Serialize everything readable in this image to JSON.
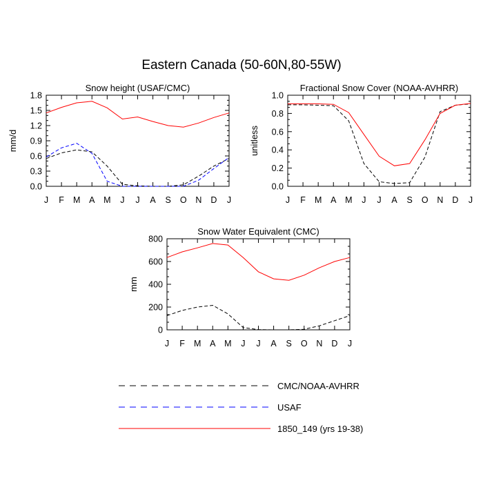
{
  "figure_title": "Eastern Canada (50-60N,80-55W)",
  "legend": [
    {
      "label": "CMC/NOAA-AVHRR",
      "color": "#000000",
      "style": "dashed"
    },
    {
      "label": "USAF",
      "color": "#0000ff",
      "style": "dashed"
    },
    {
      "label": "1850_149 (yrs 19-38)",
      "color": "#ff0000",
      "style": "solid"
    }
  ],
  "chart_data": [
    {
      "type": "line",
      "title": "Snow height (USAF/CMC)",
      "ylabel": "mm/d",
      "xlabel": "",
      "categories": [
        "J",
        "F",
        "M",
        "A",
        "M",
        "J",
        "J",
        "A",
        "S",
        "O",
        "N",
        "D",
        "J"
      ],
      "ylim": [
        0,
        1.8
      ],
      "yticks": [
        "0.0",
        "0.3",
        "0.6",
        "0.9",
        "1.2",
        "1.5",
        "1.8"
      ],
      "ytick_values": [
        0,
        0.3,
        0.6,
        0.9,
        1.2,
        1.5,
        1.8
      ],
      "series": [
        {
          "name": "CMC/NOAA-AVHRR",
          "color": "#000000",
          "style": "dashed",
          "values": [
            0.55,
            0.66,
            0.72,
            0.68,
            0.4,
            0.04,
            0.01,
            0.0,
            0.0,
            0.03,
            0.2,
            0.4,
            0.55
          ]
        },
        {
          "name": "USAF",
          "color": "#0000ff",
          "style": "dashed",
          "values": [
            0.58,
            0.76,
            0.85,
            0.65,
            0.1,
            0.0,
            0.0,
            0.0,
            0.0,
            0.0,
            0.12,
            0.35,
            0.57
          ]
        },
        {
          "name": "1850_149 (yrs 19-38)",
          "color": "#ff0000",
          "style": "solid",
          "values": [
            1.45,
            1.56,
            1.65,
            1.68,
            1.55,
            1.33,
            1.37,
            1.28,
            1.2,
            1.17,
            1.25,
            1.36,
            1.45
          ]
        }
      ]
    },
    {
      "type": "line",
      "title": "Fractional Snow Cover (NOAA-AVHRR)",
      "ylabel": "unitless",
      "xlabel": "",
      "categories": [
        "J",
        "F",
        "M",
        "A",
        "M",
        "J",
        "J",
        "A",
        "S",
        "O",
        "N",
        "D",
        "J"
      ],
      "ylim": [
        0,
        1.0
      ],
      "yticks": [
        "0.0",
        "0.2",
        "0.4",
        "0.6",
        "0.8",
        "1.0"
      ],
      "ytick_values": [
        0,
        0.2,
        0.4,
        0.6,
        0.8,
        1.0
      ],
      "series": [
        {
          "name": "CMC/NOAA-AVHRR",
          "color": "#000000",
          "style": "dashed",
          "values": [
            0.895,
            0.895,
            0.89,
            0.885,
            0.72,
            0.25,
            0.05,
            0.03,
            0.04,
            0.32,
            0.82,
            0.89,
            0.905
          ]
        },
        {
          "name": "1850_149 (yrs 19-38)",
          "color": "#ff0000",
          "style": "solid",
          "values": [
            0.905,
            0.905,
            0.905,
            0.9,
            0.81,
            0.57,
            0.33,
            0.225,
            0.25,
            0.51,
            0.8,
            0.89,
            0.91
          ]
        }
      ]
    },
    {
      "type": "line",
      "title": "Snow Water Equivalent (CMC)",
      "ylabel": "mm",
      "xlabel": "",
      "categories": [
        "J",
        "F",
        "M",
        "A",
        "M",
        "J",
        "J",
        "A",
        "S",
        "O",
        "N",
        "D",
        "J"
      ],
      "ylim": [
        0,
        800
      ],
      "yticks": [
        "0",
        "200",
        "400",
        "600",
        "800"
      ],
      "ytick_values": [
        0,
        200,
        400,
        600,
        800
      ],
      "series": [
        {
          "name": "CMC/NOAA-AVHRR",
          "color": "#000000",
          "style": "dashed",
          "values": [
            125,
            170,
            200,
            215,
            140,
            20,
            2,
            0,
            0,
            5,
            35,
            80,
            125
          ]
        },
        {
          "name": "1850_149 (yrs 19-38)",
          "color": "#ff0000",
          "style": "solid",
          "values": [
            635,
            685,
            720,
            758,
            745,
            635,
            510,
            448,
            435,
            480,
            545,
            600,
            635
          ]
        }
      ]
    }
  ]
}
